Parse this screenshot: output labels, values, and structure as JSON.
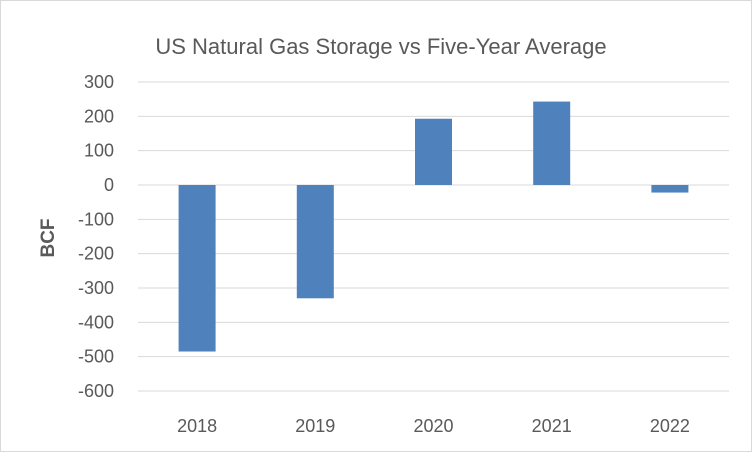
{
  "chart_data": {
    "type": "bar",
    "title": "US Natural Gas Storage vs Five-Year Average",
    "xlabel": "",
    "ylabel": "BCF",
    "categories": [
      "2018",
      "2019",
      "2020",
      "2021",
      "2022"
    ],
    "values": [
      -485,
      -330,
      193,
      243,
      -22
    ],
    "ylim": [
      -600,
      300
    ],
    "yticks": [
      300,
      200,
      100,
      0,
      -100,
      -200,
      -300,
      -400,
      -500,
      -600
    ],
    "grid": true,
    "legend": "none",
    "bar_color": "#4f81bd"
  }
}
